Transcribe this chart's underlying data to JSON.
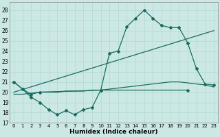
{
  "xlabel": "Humidex (Indice chaleur)",
  "bg_color": "#cbe8e4",
  "grid_color": "#b0d8d3",
  "line_color": "#1a6b5e",
  "x_ticks": [
    0,
    1,
    2,
    3,
    4,
    5,
    6,
    7,
    8,
    9,
    10,
    11,
    12,
    13,
    14,
    15,
    16,
    17,
    18,
    19,
    20,
    21,
    22,
    23
  ],
  "ylim": [
    17,
    28.8
  ],
  "xlim": [
    -0.5,
    23.5
  ],
  "yticks": [
    17,
    18,
    19,
    20,
    21,
    22,
    23,
    24,
    25,
    26,
    27,
    28
  ],
  "line_jagged": {
    "x": [
      0,
      1,
      2,
      3,
      4,
      5,
      6,
      7,
      8,
      9,
      10,
      20
    ],
    "y": [
      21.0,
      20.3,
      19.5,
      19.0,
      18.3,
      17.8,
      18.2,
      17.8,
      18.3,
      18.5,
      20.2,
      20.2
    ]
  },
  "line_peak": {
    "x": [
      0,
      1,
      2,
      3,
      10,
      11,
      12,
      13,
      14,
      15,
      16,
      17,
      18,
      19,
      20,
      21,
      22,
      23
    ],
    "y": [
      21.0,
      20.3,
      19.8,
      20.0,
      20.2,
      23.8,
      24.0,
      26.4,
      27.2,
      28.0,
      27.2,
      26.5,
      26.3,
      26.3,
      24.8,
      22.3,
      20.8,
      20.7
    ]
  },
  "line_diagonal": {
    "x": [
      0,
      23
    ],
    "y": [
      20.0,
      26.0
    ]
  },
  "line_gradual": {
    "x": [
      0,
      1,
      2,
      3,
      4,
      5,
      6,
      7,
      8,
      9,
      10,
      11,
      12,
      13,
      14,
      15,
      16,
      17,
      18,
      19,
      20,
      21,
      22,
      23
    ],
    "y": [
      19.8,
      19.8,
      19.9,
      20.0,
      20.0,
      20.0,
      20.1,
      20.1,
      20.1,
      20.2,
      20.2,
      20.3,
      20.4,
      20.5,
      20.6,
      20.7,
      20.8,
      20.9,
      21.0,
      21.0,
      20.9,
      20.8,
      20.7,
      20.5
    ]
  }
}
